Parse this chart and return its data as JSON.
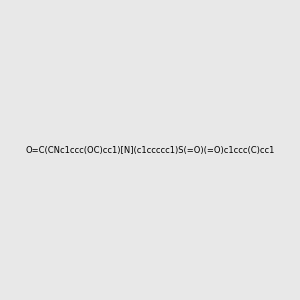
{
  "smiles": "O=C(CNc1ccc(OC)cc1)[N](c1ccccc1)S(=O)(=O)c1ccc(C)cc1",
  "title": "",
  "bg_color": "#e8e8e8",
  "figsize": [
    3.0,
    3.0
  ],
  "dpi": 100
}
